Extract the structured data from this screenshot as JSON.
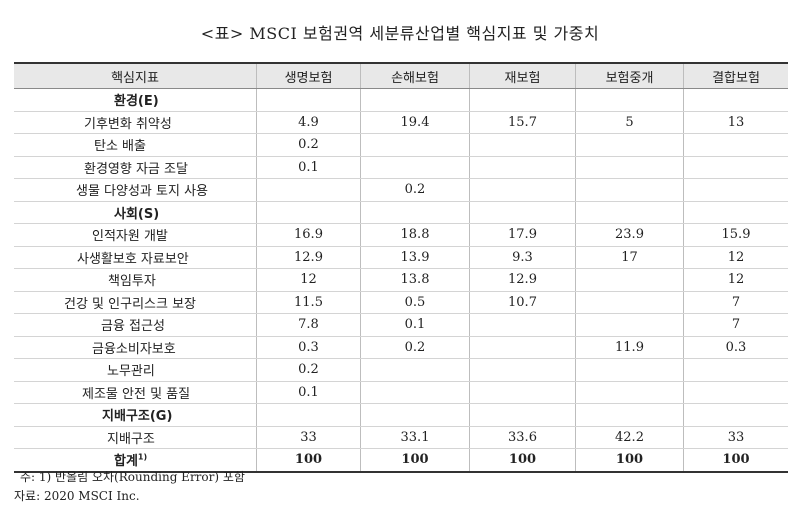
{
  "title": "<표> MSCI 보험권역 세분류산업별 핵심지표 및 가중치",
  "table": {
    "headers": [
      "핵심지표",
      "생명보험",
      "손해보험",
      "재보험",
      "보험중개",
      "결합보험"
    ],
    "rows": [
      {
        "label": "환경(E)",
        "cat": true,
        "indent": 100,
        "values": [
          "",
          "",
          "",
          "",
          ""
        ]
      },
      {
        "label": "기후변화 취약성",
        "indent": 70,
        "values": [
          "4.9",
          "19.4",
          "15.7",
          "5",
          "13"
        ]
      },
      {
        "label": "탄소 배출",
        "indent": 80,
        "values": [
          "0.2",
          "",
          "",
          "",
          ""
        ]
      },
      {
        "label": "환경영향 자금 조달",
        "indent": 70,
        "values": [
          "0.1",
          "",
          "",
          "",
          ""
        ]
      },
      {
        "label": "생물 다양성과 토지 사용",
        "indent": 62,
        "values": [
          "",
          "0.2",
          "",
          "",
          ""
        ]
      },
      {
        "label": "사회(S)",
        "cat": true,
        "indent": 100,
        "values": [
          "",
          "",
          "",
          "",
          ""
        ]
      },
      {
        "label": "인적자원 개발",
        "indent": 78,
        "values": [
          "16.9",
          "18.8",
          "17.9",
          "23.9",
          "15.9"
        ]
      },
      {
        "label": "사생활보호 자료보안",
        "indent": 63,
        "values": [
          "12.9",
          "13.9",
          "9.3",
          "17",
          "12"
        ]
      },
      {
        "label": "책임투자",
        "indent": 94,
        "values": [
          "12",
          "13.8",
          "12.9",
          "",
          "12"
        ]
      },
      {
        "label": "건강 및 인구리스크 보장",
        "indent": 50,
        "values": [
          "11.5",
          "0.5",
          "10.7",
          "",
          "7"
        ]
      },
      {
        "label": "금융 접근성",
        "indent": 87,
        "values": [
          "7.8",
          "0.1",
          "",
          "",
          "7"
        ]
      },
      {
        "label": "금융소비자보호",
        "indent": 78,
        "values": [
          "0.3",
          "0.2",
          "",
          "11.9",
          "0.3"
        ]
      },
      {
        "label": "노무관리",
        "indent": 93,
        "values": [
          "0.2",
          "",
          "",
          "",
          ""
        ]
      },
      {
        "label": "제조물 안전 및 품질",
        "indent": 68,
        "values": [
          "0.1",
          "",
          "",
          "",
          ""
        ]
      },
      {
        "label": "지배구조(G)",
        "cat": true,
        "indent": 88,
        "values": [
          "",
          "",
          "",
          "",
          ""
        ]
      },
      {
        "label": "지배구조",
        "indent": 93,
        "values": [
          "33",
          "33.1",
          "33.6",
          "42.2",
          "33"
        ]
      }
    ],
    "total": {
      "label": "합계",
      "sup": "1)",
      "values": [
        "100",
        "100",
        "100",
        "100",
        "100"
      ]
    }
  },
  "notes": {
    "note1": "주: 1) 반올림 오차(Rounding Error) 포함",
    "source": "자료: 2020 MSCI Inc."
  }
}
